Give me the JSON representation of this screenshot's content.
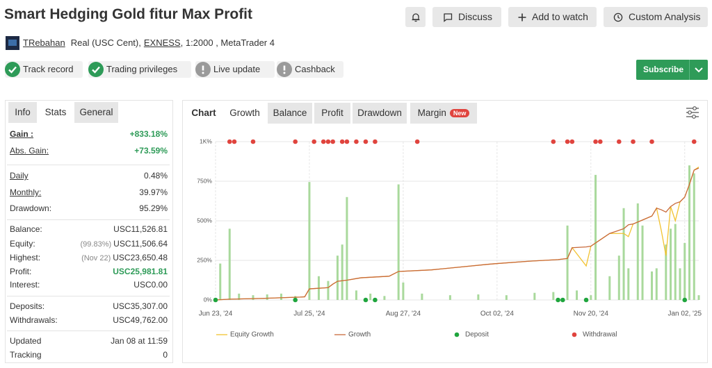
{
  "header": {
    "title": "Smart Hedging Gold fitur Max Profit",
    "buttons": [
      "Discuss",
      "Add to watch",
      "Custom Analysis"
    ],
    "user": "TRebahan",
    "account": "Real (USC Cent),",
    "broker": "EXNESS",
    "account_rest": ", 1:2000 , MetaTrader 4",
    "badges": [
      {
        "label": "Track record",
        "ok": true
      },
      {
        "label": "Trading privileges",
        "ok": true
      },
      {
        "label": "Live update",
        "ok": false
      },
      {
        "label": "Cashback",
        "ok": false
      }
    ],
    "subscribe": "Subscribe"
  },
  "stats_panel": {
    "tabs": [
      "Info",
      "Stats",
      "General"
    ],
    "active_tab": 1,
    "groups": [
      [
        {
          "label": "Gain :",
          "value": "+833.18%",
          "link": true,
          "bold": true,
          "positive": true
        },
        {
          "label": "Abs. Gain:",
          "value": "+73.59%",
          "link": true,
          "positive": true
        }
      ],
      [
        {
          "label": "Daily",
          "value": "0.48%",
          "link": true
        },
        {
          "label": "Monthly:",
          "value": "39.97%",
          "link": true
        },
        {
          "label": "Drawdown:",
          "value": "95.29%"
        }
      ],
      [
        {
          "label": "Balance:",
          "value": "USC11,526.81"
        },
        {
          "label": "Equity:",
          "note": "(99.83%)",
          "value": "USC11,506.64"
        },
        {
          "label": "Highest:",
          "note": "(Nov 22)",
          "value": "USC23,650.48"
        },
        {
          "label": "Profit:",
          "value": "USC25,981.81",
          "positive": true
        },
        {
          "label": "Interest:",
          "value": "USC0.00"
        }
      ],
      [
        {
          "label": "Deposits:",
          "value": "USC35,307.00"
        },
        {
          "label": "Withdrawals:",
          "value": "USC49,762.00"
        }
      ],
      [
        {
          "label": "Updated",
          "value": "Jan 08 at 11:59"
        },
        {
          "label": "Tracking",
          "value": "0"
        }
      ]
    ]
  },
  "chart_tabs": {
    "tabs": [
      "Chart",
      "Growth",
      "Balance",
      "Profit",
      "Drawdown",
      "Margin"
    ],
    "active_tab": 1,
    "new_badge": "New"
  },
  "chart_data": {
    "type": "line",
    "x": [
      0,
      3,
      10,
      18,
      19,
      20,
      24,
      25,
      26,
      28,
      31,
      37,
      39,
      46,
      58,
      60,
      67,
      73,
      75,
      76,
      79,
      80,
      81,
      84,
      87,
      88,
      89,
      91,
      93,
      94,
      95,
      96,
      97,
      98,
      99,
      100,
      101,
      102,
      103
    ],
    "xlim": [
      0,
      103
    ],
    "xticks": [
      {
        "value": 0,
        "label": "Jun 23, '24"
      },
      {
        "value": 20,
        "label": "Jul 25, '24"
      },
      {
        "value": 40,
        "label": "Aug 27, '24"
      },
      {
        "value": 60,
        "label": "Oct 02, '24"
      },
      {
        "value": 80,
        "label": "Nov 20, '24"
      },
      {
        "value": 100,
        "label": "Jan 02, '25"
      }
    ],
    "ylim": [
      0,
      1000
    ],
    "yticks": [
      {
        "value": 0,
        "label": "0%"
      },
      {
        "value": 250,
        "label": "250%"
      },
      {
        "value": 500,
        "label": "500%"
      },
      {
        "value": 750,
        "label": "750%"
      },
      {
        "value": 1000,
        "label": "1K%"
      }
    ],
    "grid": true,
    "series": [
      {
        "name": "Equity Growth",
        "color": "#f2c230",
        "values": [
          0,
          5,
          10,
          18,
          20,
          70,
          78,
          100,
          118,
          125,
          140,
          150,
          180,
          190,
          225,
          230,
          245,
          255,
          262,
          330,
          215,
          340,
          360,
          420,
          420,
          400,
          480,
          505,
          530,
          580,
          440,
          280,
          590,
          500,
          620,
          650,
          730,
          820,
          840
        ]
      },
      {
        "name": "Growth",
        "color": "#c8693a",
        "values": [
          0,
          5,
          10,
          18,
          20,
          70,
          78,
          100,
          118,
          125,
          140,
          150,
          180,
          190,
          225,
          230,
          245,
          255,
          262,
          330,
          335,
          340,
          360,
          420,
          450,
          475,
          480,
          505,
          530,
          580,
          570,
          555,
          590,
          610,
          620,
          650,
          730,
          820,
          833
        ]
      }
    ],
    "bars": {
      "color": "#a9d99c",
      "x": [
        1,
        3,
        5,
        8,
        11,
        14,
        17,
        20,
        22,
        24,
        26,
        27,
        28,
        30,
        33,
        36,
        39,
        40,
        44,
        50,
        56,
        62,
        68,
        72,
        75,
        77,
        80,
        81,
        84,
        86,
        87,
        88,
        90,
        91,
        93,
        94,
        96,
        97,
        98,
        99,
        100,
        101,
        102,
        103
      ],
      "values": [
        230,
        450,
        40,
        30,
        35,
        40,
        25,
        745,
        150,
        120,
        280,
        350,
        650,
        60,
        40,
        25,
        730,
        110,
        40,
        30,
        35,
        30,
        45,
        50,
        470,
        60,
        30,
        790,
        150,
        280,
        580,
        200,
        610,
        470,
        180,
        200,
        350,
        450,
        480,
        200,
        360,
        850,
        800,
        30
      ]
    },
    "events": [
      {
        "name": "Deposit",
        "color": "#1fa53d",
        "x": [
          0,
          17,
          32,
          34,
          73,
          74,
          79,
          100
        ]
      },
      {
        "name": "Withdrawal",
        "color": "#e0443e",
        "x": [
          3,
          4,
          8,
          17,
          21,
          23,
          24,
          25,
          27,
          28,
          30,
          32,
          34,
          43,
          72,
          75,
          76,
          81,
          82,
          86,
          89,
          93,
          102
        ]
      }
    ]
  }
}
